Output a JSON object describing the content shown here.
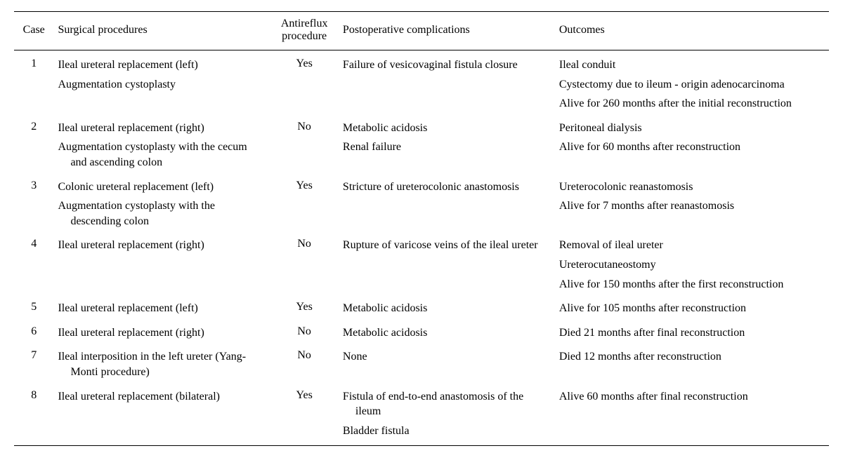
{
  "columns": {
    "case": "Case",
    "procedures": "Surgical procedures",
    "antireflux": "Antireflux procedure",
    "complications": "Postoperative complications",
    "outcomes": "Outcomes"
  },
  "cases": [
    {
      "num": "1",
      "antireflux": "Yes",
      "procedures": [
        "Ileal ureteral replacement (left)",
        "Augmentation cystoplasty"
      ],
      "complications": [
        "Failure of vesicovaginal fistula closure"
      ],
      "outcomes": [
        "Ileal conduit",
        "Cystectomy due to ileum - origin adenocarcinoma",
        "Alive for 260 months after the initial reconstruction"
      ]
    },
    {
      "num": "2",
      "antireflux": "No",
      "procedures": [
        "Ileal ureteral replacement (right)",
        "Augmentation cystoplasty with the cecum and ascending colon"
      ],
      "complications": [
        "Metabolic acidosis",
        "Renal failure"
      ],
      "outcomes": [
        "Peritoneal dialysis",
        "Alive for 60 months after reconstruction"
      ]
    },
    {
      "num": "3",
      "antireflux": "Yes",
      "procedures": [
        "Colonic ureteral replacement (left)",
        "Augmentation cystoplasty with the descending colon"
      ],
      "complications": [
        "Stricture of ureterocolonic anastomosis"
      ],
      "outcomes": [
        "Ureterocolonic reanastomosis",
        "Alive for 7 months after reanastomosis"
      ]
    },
    {
      "num": "4",
      "antireflux": "No",
      "procedures": [
        "Ileal ureteral replacement (right)"
      ],
      "complications": [
        "Rupture of varicose veins of the ileal ureter"
      ],
      "outcomes": [
        "Removal of ileal ureter",
        "Ureterocutaneostomy",
        "Alive for 150 months after the first reconstruction"
      ]
    },
    {
      "num": "5",
      "antireflux": "Yes",
      "procedures": [
        "Ileal ureteral replacement (left)"
      ],
      "complications": [
        "Metabolic acidosis"
      ],
      "outcomes": [
        "Alive for 105 months after reconstruction"
      ]
    },
    {
      "num": "6",
      "antireflux": "No",
      "procedures": [
        "Ileal ureteral replacement (right)"
      ],
      "complications": [
        "Metabolic acidosis"
      ],
      "outcomes": [
        "Died 21 months after final reconstruction"
      ]
    },
    {
      "num": "7",
      "antireflux": "No",
      "procedures": [
        "Ileal interposition in the left ureter (Yang-Monti procedure)"
      ],
      "complications": [
        "None"
      ],
      "outcomes": [
        "Died 12 months after reconstruction"
      ]
    },
    {
      "num": "8",
      "antireflux": "Yes",
      "procedures": [
        "Ileal ureteral replacement (bilateral)"
      ],
      "complications": [
        "Fistula of end-to-end anastomosis of the ileum",
        "Bladder fistula"
      ],
      "outcomes": [
        "Alive 60 months after final reconstruction"
      ]
    }
  ]
}
